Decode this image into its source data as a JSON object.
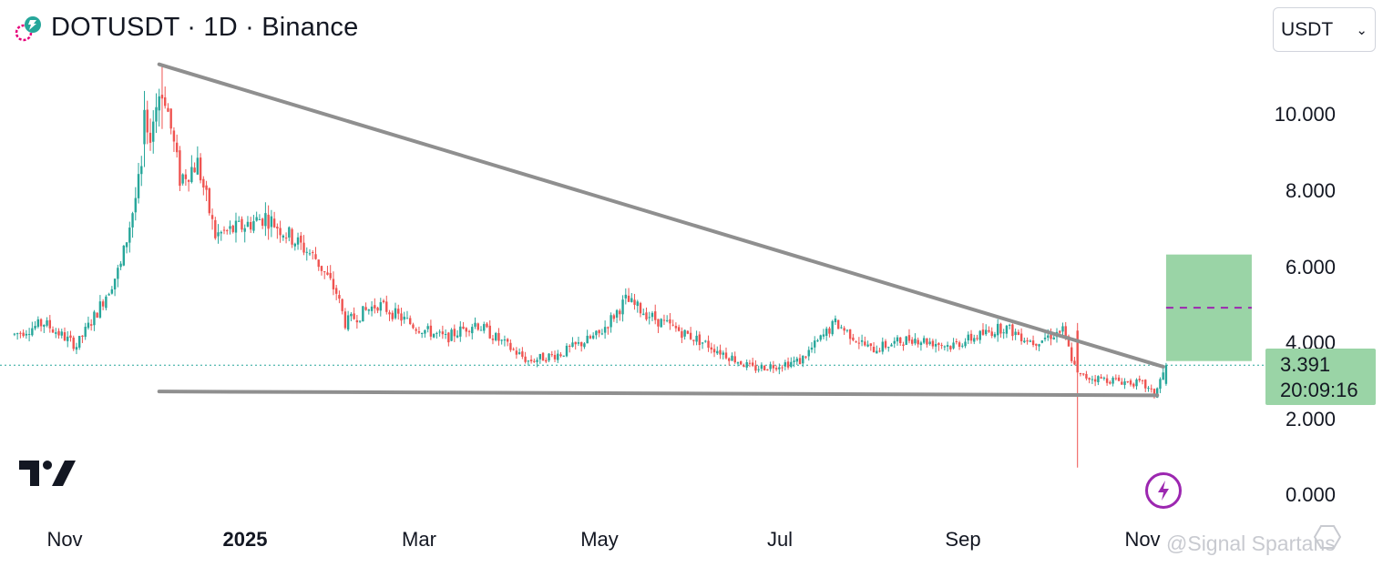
{
  "header": {
    "title": "DOTUSDT · 1D · Binance"
  },
  "currency_select": {
    "value": "USDT"
  },
  "price_box": {
    "price": "3.391",
    "countdown": "20:09:16"
  },
  "watermark": "@Signal Spartans",
  "colors": {
    "up": "#26a69a",
    "down": "#ef5350",
    "trendline": "#8f8f8f",
    "target_zone": "#9ad4a6",
    "target_mid": "#9c27b0",
    "current_price_line": "#26a69a"
  },
  "icons": [
    "coin-logo-icon",
    "chevron-down-icon",
    "tradingview-logo-icon",
    "bolt-icon",
    "hexagon-icon"
  ],
  "chart_data": {
    "type": "candlestick",
    "symbol": "DOTUSDT",
    "interval": "1D",
    "exchange": "Binance",
    "y_axis": {
      "ticks": [
        "10.000",
        "8.000",
        "6.000",
        "4.000",
        "2.000",
        "0.000"
      ],
      "ylim": [
        0,
        11.5
      ]
    },
    "x_axis": {
      "ticks": [
        {
          "label": "Nov",
          "date": "2024-11-01",
          "bold": false
        },
        {
          "label": "2025",
          "date": "2025-01-01",
          "bold": true
        },
        {
          "label": "Mar",
          "date": "2025-03-01",
          "bold": false
        },
        {
          "label": "May",
          "date": "2025-05-01",
          "bold": false
        },
        {
          "label": "Jul",
          "date": "2025-07-01",
          "bold": false
        },
        {
          "label": "Sep",
          "date": "2025-09-01",
          "bold": false
        },
        {
          "label": "Nov",
          "date": "2025-11-01",
          "bold": false
        }
      ]
    },
    "current_price": 3.391,
    "close_path": [
      [
        "2024-10-15",
        4.2
      ],
      [
        "2024-10-25",
        4.5
      ],
      [
        "2024-11-05",
        3.9
      ],
      [
        "2024-11-12",
        4.8
      ],
      [
        "2024-11-20",
        6.0
      ],
      [
        "2024-11-27",
        8.5
      ],
      [
        "2024-12-04",
        10.9
      ],
      [
        "2024-12-10",
        8.3
      ],
      [
        "2024-12-16",
        8.7
      ],
      [
        "2024-12-22",
        6.8
      ],
      [
        "2024-12-30",
        7.0
      ],
      [
        "2025-01-08",
        7.3
      ],
      [
        "2025-01-16",
        6.8
      ],
      [
        "2025-01-25",
        6.2
      ],
      [
        "2025-02-01",
        5.3
      ],
      [
        "2025-02-04",
        4.5
      ],
      [
        "2025-02-15",
        5.0
      ],
      [
        "2025-02-28",
        4.4
      ],
      [
        "2025-03-10",
        4.1
      ],
      [
        "2025-03-20",
        4.5
      ],
      [
        "2025-04-07",
        3.5
      ],
      [
        "2025-04-18",
        3.7
      ],
      [
        "2025-05-01",
        4.2
      ],
      [
        "2025-05-10",
        5.1
      ],
      [
        "2025-05-20",
        4.6
      ],
      [
        "2025-06-05",
        4.0
      ],
      [
        "2025-06-22",
        3.3
      ],
      [
        "2025-07-08",
        3.5
      ],
      [
        "2025-07-20",
        4.5
      ],
      [
        "2025-08-01",
        3.8
      ],
      [
        "2025-08-15",
        4.1
      ],
      [
        "2025-08-28",
        3.9
      ],
      [
        "2025-09-15",
        4.4
      ],
      [
        "2025-09-25",
        4.0
      ],
      [
        "2025-10-05",
        4.3
      ],
      [
        "2025-10-10",
        3.1
      ],
      [
        "2025-10-22",
        3.0
      ],
      [
        "2025-11-01",
        2.9
      ],
      [
        "2025-11-05",
        2.6
      ],
      [
        "2025-11-09",
        3.39
      ]
    ],
    "candles": [
      [
        "2024-11-28",
        9.2,
        10.6,
        8.6,
        10.1
      ],
      [
        "2024-12-04",
        10.5,
        11.3,
        9.6,
        10.4
      ],
      [
        "2025-10-10",
        4.3,
        4.5,
        0.7,
        3.2
      ],
      [
        "2025-11-09",
        2.9,
        3.45,
        2.85,
        3.391
      ]
    ],
    "trendlines": [
      {
        "name": "descending-resistance",
        "from": [
          "2024-12-03",
          11.3
        ],
        "to": [
          "2025-11-08",
          3.35
        ]
      },
      {
        "name": "horizontal-support",
        "from": [
          "2024-12-03",
          2.7
        ],
        "to": [
          "2025-11-06",
          2.6
        ]
      }
    ],
    "target_zone": {
      "from": [
        "2025-11-09",
        3.5
      ],
      "to": [
        "2025-12-08",
        6.3
      ],
      "midline": 4.9
    }
  }
}
